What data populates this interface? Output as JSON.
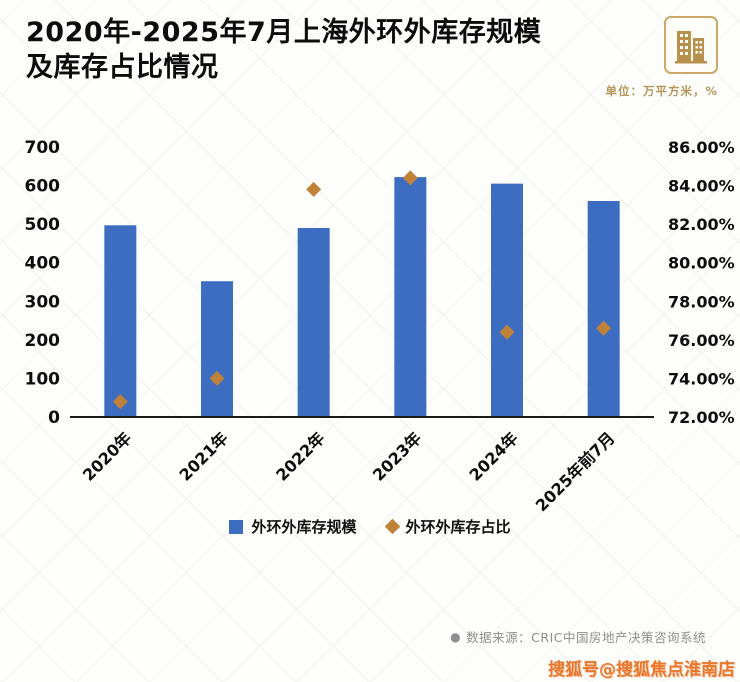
{
  "page": {
    "title_line1": "2020年-2025年7月上海外环外库存规模",
    "title_line2": "及库存占比情况",
    "unit_note": "单位：万平方米，%"
  },
  "chart_data": {
    "type": "bar",
    "title": "2020年-2025年7月上海外环外库存规模及库存占比情况",
    "categories": [
      "2020年",
      "2021年",
      "2022年",
      "2023年",
      "2024年",
      "2025年前7月"
    ],
    "series": [
      {
        "name": "外环外库存规模",
        "type": "bar",
        "axis": "left",
        "color": "#3D6DC1",
        "values": [
          497,
          352,
          490,
          622,
          605,
          560
        ]
      },
      {
        "name": "外环外库存占比",
        "type": "scatter",
        "marker": "diamond",
        "axis": "right",
        "color": "#C08238",
        "values": [
          72.8,
          74.0,
          83.8,
          84.4,
          76.4,
          76.6
        ]
      }
    ],
    "left_axis": {
      "min": 0,
      "max": 700,
      "ticks": [
        "700",
        "600",
        "500",
        "400",
        "300",
        "200",
        "100",
        "0"
      ]
    },
    "right_axis": {
      "min": 72,
      "max": 86,
      "ticks": [
        "86.00%",
        "84.00%",
        "82.00%",
        "80.00%",
        "78.00%",
        "76.00%",
        "74.00%",
        "72.00%"
      ]
    },
    "grid": false,
    "legend_position": "bottom"
  },
  "footer": {
    "source_bullet": "●",
    "source": "数据来源：CRIC中国房地产决策咨询系统",
    "watermark": "搜狐号@搜狐焦点淮南店"
  },
  "colors": {
    "bar": "#3D6DC1",
    "marker": "#C08238",
    "title_text": "#0d0d0d",
    "unit_text": "#B5975C",
    "source_text": "#8E8E8E",
    "watermark_text": "#E8762C",
    "logo_gold": "#B8914E"
  }
}
